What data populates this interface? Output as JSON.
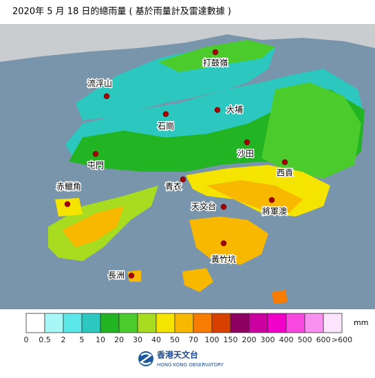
{
  "title": "2020年 5 月 18 日的總雨量 ( 基於雨量計及雷達數據 )",
  "stations": [
    "打鼓嶺",
    "流浮山",
    "大埔",
    "石崗",
    "沙田",
    "屯門",
    "西貢",
    "青衣",
    "赤鱲角",
    "天文台",
    "將軍澳",
    "黃竹坑",
    "長洲"
  ],
  "legend": {
    "labels": [
      0,
      0.5,
      2,
      5,
      10,
      20,
      30,
      40,
      50,
      70,
      100,
      150,
      200,
      300,
      400,
      500,
      600,
      ">600"
    ],
    "colors": [
      "#ffffff",
      "#a8f7f7",
      "#5ce8e8",
      "#2cc8c0",
      "#22b422",
      "#4ccc2c",
      "#a8dc20",
      "#f4e400",
      "#f8b800",
      "#f87c00",
      "#d84000",
      "#8c0060",
      "#cc00a0",
      "#f000c8",
      "#f848e0",
      "#f890f0",
      "#fce4fc"
    ],
    "unit": "mm"
  },
  "logo": {
    "name": "香港天文台",
    "english": "HONG KONG OBSERVATORY"
  }
}
